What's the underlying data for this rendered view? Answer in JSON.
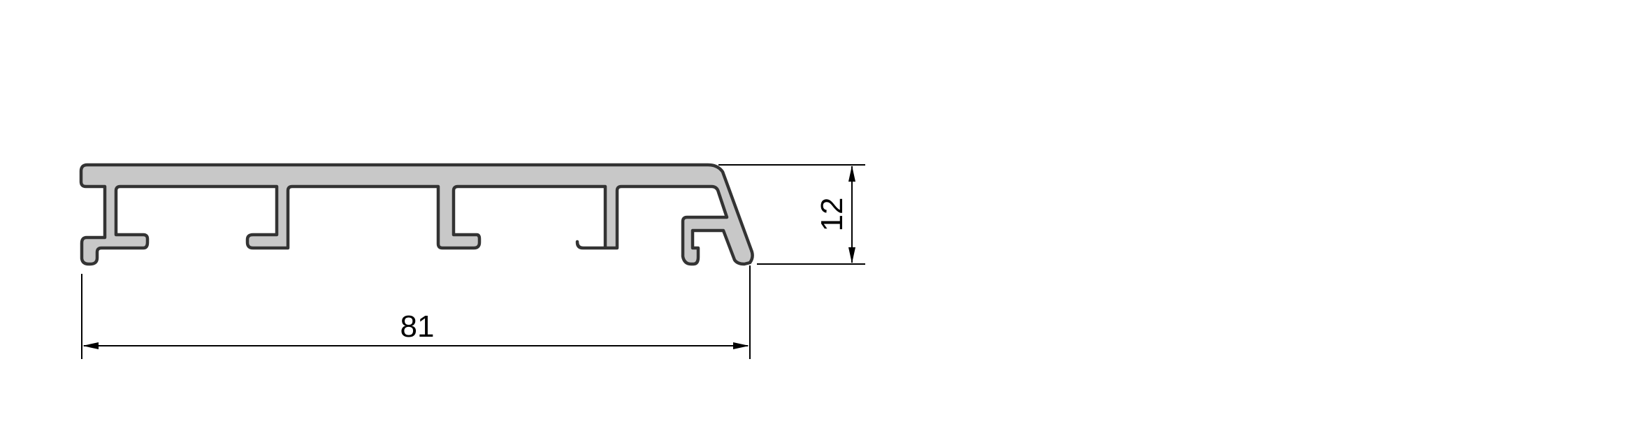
{
  "drawing": {
    "profile": {
      "name": "extrusion-profile",
      "fill_color": "#c8c8c8",
      "stroke_color": "#333333"
    },
    "dimensions": {
      "width_label": "81",
      "height_label": "12",
      "line_color": "#000000"
    }
  }
}
